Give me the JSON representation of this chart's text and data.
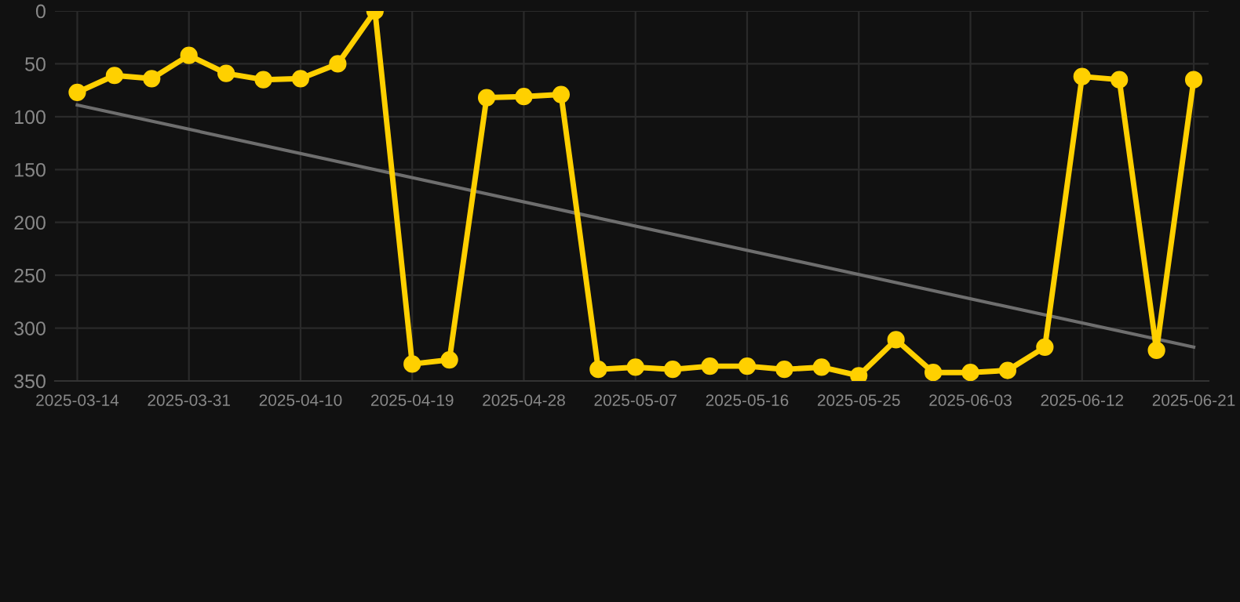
{
  "chart_data": {
    "type": "line",
    "categories": [
      "2025-03-14",
      null,
      null,
      "2025-03-31",
      null,
      null,
      "2025-04-10",
      null,
      null,
      "2025-04-19",
      null,
      null,
      "2025-04-28",
      null,
      null,
      "2025-05-07",
      null,
      null,
      "2025-05-16",
      null,
      null,
      "2025-05-25",
      null,
      null,
      "2025-06-03",
      null,
      null,
      "2025-06-12",
      null,
      null,
      "2025-06-21"
    ],
    "series": [
      {
        "color": "#ffd000",
        "marker": "circle",
        "values": [
          77,
          61,
          64,
          42,
          59,
          65,
          64,
          50,
          0,
          334,
          330,
          82,
          81,
          79,
          339,
          337,
          339,
          336,
          336,
          339,
          337,
          345,
          311,
          342,
          342,
          340,
          318,
          62,
          65,
          321,
          65
        ]
      },
      {
        "color": "#6e6e6e",
        "marker": "none",
        "values": [
          89,
          null,
          null,
          null,
          null,
          null,
          null,
          null,
          null,
          null,
          null,
          null,
          null,
          null,
          null,
          null,
          null,
          null,
          null,
          null,
          null,
          null,
          null,
          null,
          null,
          null,
          null,
          null,
          null,
          null,
          318
        ]
      }
    ],
    "ylim": [
      350,
      0
    ],
    "yticks": [
      0,
      50,
      100,
      150,
      200,
      250,
      300,
      350
    ],
    "grid": true,
    "line_style": "solid"
  }
}
